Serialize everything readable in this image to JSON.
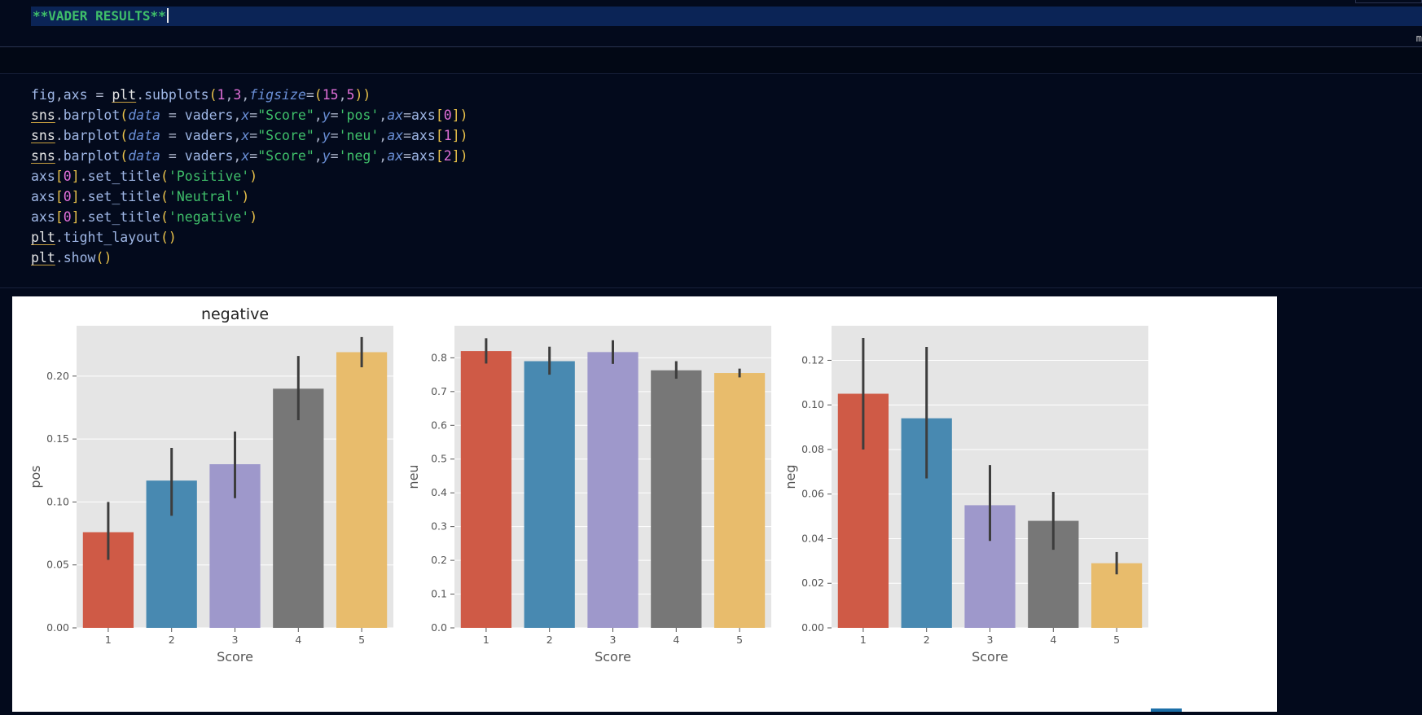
{
  "markdown_cell": {
    "text": "**VADER RESULTS**",
    "right_hint": "m"
  },
  "code_cell": {
    "lines": [
      [
        {
          "t": "fig",
          "c": "v"
        },
        {
          "t": ",",
          "c": "o"
        },
        {
          "t": "axs",
          "c": "v"
        },
        {
          "t": " = ",
          "c": "o"
        },
        {
          "t": "plt",
          "c": "m"
        },
        {
          "t": ".",
          "c": "o"
        },
        {
          "t": "subplots",
          "c": "f"
        },
        {
          "t": "(",
          "c": "p"
        },
        {
          "t": "1",
          "c": "n"
        },
        {
          "t": ",",
          "c": "o"
        },
        {
          "t": "3",
          "c": "n"
        },
        {
          "t": ",",
          "c": "o"
        },
        {
          "t": "figsize",
          "c": "k"
        },
        {
          "t": "=",
          "c": "o"
        },
        {
          "t": "(",
          "c": "p"
        },
        {
          "t": "15",
          "c": "n"
        },
        {
          "t": ",",
          "c": "o"
        },
        {
          "t": "5",
          "c": "n"
        },
        {
          "t": ")",
          "c": "p"
        },
        {
          "t": ")",
          "c": "p"
        }
      ],
      [
        {
          "t": "sns",
          "c": "m"
        },
        {
          "t": ".",
          "c": "o"
        },
        {
          "t": "barplot",
          "c": "f"
        },
        {
          "t": "(",
          "c": "p"
        },
        {
          "t": "data",
          "c": "k"
        },
        {
          "t": " = ",
          "c": "o"
        },
        {
          "t": "vaders",
          "c": "v"
        },
        {
          "t": ",",
          "c": "o"
        },
        {
          "t": "x",
          "c": "k"
        },
        {
          "t": "=",
          "c": "o"
        },
        {
          "t": "\"Score\"",
          "c": "s"
        },
        {
          "t": ",",
          "c": "o"
        },
        {
          "t": "y",
          "c": "k"
        },
        {
          "t": "=",
          "c": "o"
        },
        {
          "t": "'pos'",
          "c": "s"
        },
        {
          "t": ",",
          "c": "o"
        },
        {
          "t": "ax",
          "c": "k"
        },
        {
          "t": "=",
          "c": "o"
        },
        {
          "t": "axs",
          "c": "v"
        },
        {
          "t": "[",
          "c": "p"
        },
        {
          "t": "0",
          "c": "n"
        },
        {
          "t": "]",
          "c": "p"
        },
        {
          "t": ")",
          "c": "p"
        }
      ],
      [
        {
          "t": "sns",
          "c": "m"
        },
        {
          "t": ".",
          "c": "o"
        },
        {
          "t": "barplot",
          "c": "f"
        },
        {
          "t": "(",
          "c": "p"
        },
        {
          "t": "data",
          "c": "k"
        },
        {
          "t": " = ",
          "c": "o"
        },
        {
          "t": "vaders",
          "c": "v"
        },
        {
          "t": ",",
          "c": "o"
        },
        {
          "t": "x",
          "c": "k"
        },
        {
          "t": "=",
          "c": "o"
        },
        {
          "t": "\"Score\"",
          "c": "s"
        },
        {
          "t": ",",
          "c": "o"
        },
        {
          "t": "y",
          "c": "k"
        },
        {
          "t": "=",
          "c": "o"
        },
        {
          "t": "'neu'",
          "c": "s"
        },
        {
          "t": ",",
          "c": "o"
        },
        {
          "t": "ax",
          "c": "k"
        },
        {
          "t": "=",
          "c": "o"
        },
        {
          "t": "axs",
          "c": "v"
        },
        {
          "t": "[",
          "c": "p"
        },
        {
          "t": "1",
          "c": "n"
        },
        {
          "t": "]",
          "c": "p"
        },
        {
          "t": ")",
          "c": "p"
        }
      ],
      [
        {
          "t": "sns",
          "c": "m"
        },
        {
          "t": ".",
          "c": "o"
        },
        {
          "t": "barplot",
          "c": "f"
        },
        {
          "t": "(",
          "c": "p"
        },
        {
          "t": "data",
          "c": "k"
        },
        {
          "t": " = ",
          "c": "o"
        },
        {
          "t": "vaders",
          "c": "v"
        },
        {
          "t": ",",
          "c": "o"
        },
        {
          "t": "x",
          "c": "k"
        },
        {
          "t": "=",
          "c": "o"
        },
        {
          "t": "\"Score\"",
          "c": "s"
        },
        {
          "t": ",",
          "c": "o"
        },
        {
          "t": "y",
          "c": "k"
        },
        {
          "t": "=",
          "c": "o"
        },
        {
          "t": "'neg'",
          "c": "s"
        },
        {
          "t": ",",
          "c": "o"
        },
        {
          "t": "ax",
          "c": "k"
        },
        {
          "t": "=",
          "c": "o"
        },
        {
          "t": "axs",
          "c": "v"
        },
        {
          "t": "[",
          "c": "p"
        },
        {
          "t": "2",
          "c": "n"
        },
        {
          "t": "]",
          "c": "p"
        },
        {
          "t": ")",
          "c": "p"
        }
      ],
      [
        {
          "t": "axs",
          "c": "v"
        },
        {
          "t": "[",
          "c": "p"
        },
        {
          "t": "0",
          "c": "n"
        },
        {
          "t": "]",
          "c": "p"
        },
        {
          "t": ".",
          "c": "o"
        },
        {
          "t": "set_title",
          "c": "f"
        },
        {
          "t": "(",
          "c": "p"
        },
        {
          "t": "'Positive'",
          "c": "s"
        },
        {
          "t": ")",
          "c": "p"
        }
      ],
      [
        {
          "t": "axs",
          "c": "v"
        },
        {
          "t": "[",
          "c": "p"
        },
        {
          "t": "0",
          "c": "n"
        },
        {
          "t": "]",
          "c": "p"
        },
        {
          "t": ".",
          "c": "o"
        },
        {
          "t": "set_title",
          "c": "f"
        },
        {
          "t": "(",
          "c": "p"
        },
        {
          "t": "'Neutral'",
          "c": "s"
        },
        {
          "t": ")",
          "c": "p"
        }
      ],
      [
        {
          "t": "axs",
          "c": "v"
        },
        {
          "t": "[",
          "c": "p"
        },
        {
          "t": "0",
          "c": "n"
        },
        {
          "t": "]",
          "c": "p"
        },
        {
          "t": ".",
          "c": "o"
        },
        {
          "t": "set_title",
          "c": "f"
        },
        {
          "t": "(",
          "c": "p"
        },
        {
          "t": "'negative'",
          "c": "s"
        },
        {
          "t": ")",
          "c": "p"
        }
      ],
      [
        {
          "t": "plt",
          "c": "m"
        },
        {
          "t": ".",
          "c": "o"
        },
        {
          "t": "tight_layout",
          "c": "f"
        },
        {
          "t": "(",
          "c": "p"
        },
        {
          "t": ")",
          "c": "p"
        }
      ],
      [
        {
          "t": "plt",
          "c": "m"
        },
        {
          "t": ".",
          "c": "o"
        },
        {
          "t": "show",
          "c": "f"
        },
        {
          "t": "(",
          "c": "p"
        },
        {
          "t": ")",
          "c": "p"
        }
      ]
    ]
  },
  "colors": {
    "bars": [
      "#cf5a46",
      "#4889b1",
      "#9e98cb",
      "#777777",
      "#e8bc6c"
    ],
    "plot_bg": "#e5e5e5",
    "grid": "#ffffff",
    "error_bar": "#3d3d3d"
  },
  "chart_data": [
    {
      "type": "bar",
      "title": "negative",
      "xlabel": "Score",
      "ylabel": "pos",
      "categories": [
        "1",
        "2",
        "3",
        "4",
        "5"
      ],
      "values": [
        0.076,
        0.117,
        0.13,
        0.19,
        0.219
      ],
      "error_low": [
        0.054,
        0.089,
        0.103,
        0.165,
        0.207
      ],
      "error_high": [
        0.1,
        0.143,
        0.156,
        0.216,
        0.231
      ],
      "ylim": [
        0,
        0.24
      ],
      "yticks": [
        0.0,
        0.05,
        0.1,
        0.15,
        0.2
      ],
      "ytick_labels": [
        "0.00",
        "0.05",
        "0.10",
        "0.15",
        "0.20"
      ],
      "grid": true
    },
    {
      "type": "bar",
      "title": "",
      "xlabel": "Score",
      "ylabel": "neu",
      "categories": [
        "1",
        "2",
        "3",
        "4",
        "5"
      ],
      "values": [
        0.82,
        0.79,
        0.817,
        0.763,
        0.755
      ],
      "error_low": [
        0.783,
        0.75,
        0.782,
        0.738,
        0.742
      ],
      "error_high": [
        0.858,
        0.833,
        0.852,
        0.79,
        0.768
      ],
      "ylim": [
        0,
        0.895
      ],
      "yticks": [
        0.0,
        0.1,
        0.2,
        0.3,
        0.4,
        0.5,
        0.6,
        0.7,
        0.8
      ],
      "ytick_labels": [
        "0.0",
        "0.1",
        "0.2",
        "0.3",
        "0.4",
        "0.5",
        "0.6",
        "0.7",
        "0.8"
      ],
      "grid": true
    },
    {
      "type": "bar",
      "title": "",
      "xlabel": "Score",
      "ylabel": "neg",
      "categories": [
        "1",
        "2",
        "3",
        "4",
        "5"
      ],
      "values": [
        0.105,
        0.094,
        0.055,
        0.048,
        0.029
      ],
      "error_low": [
        0.08,
        0.067,
        0.039,
        0.035,
        0.024
      ],
      "error_high": [
        0.13,
        0.126,
        0.073,
        0.061,
        0.034
      ],
      "ylim": [
        0,
        0.1355
      ],
      "yticks": [
        0.0,
        0.02,
        0.04,
        0.06,
        0.08,
        0.1,
        0.12
      ],
      "ytick_labels": [
        "0.00",
        "0.02",
        "0.04",
        "0.06",
        "0.08",
        "0.10",
        "0.12"
      ],
      "grid": true
    }
  ]
}
